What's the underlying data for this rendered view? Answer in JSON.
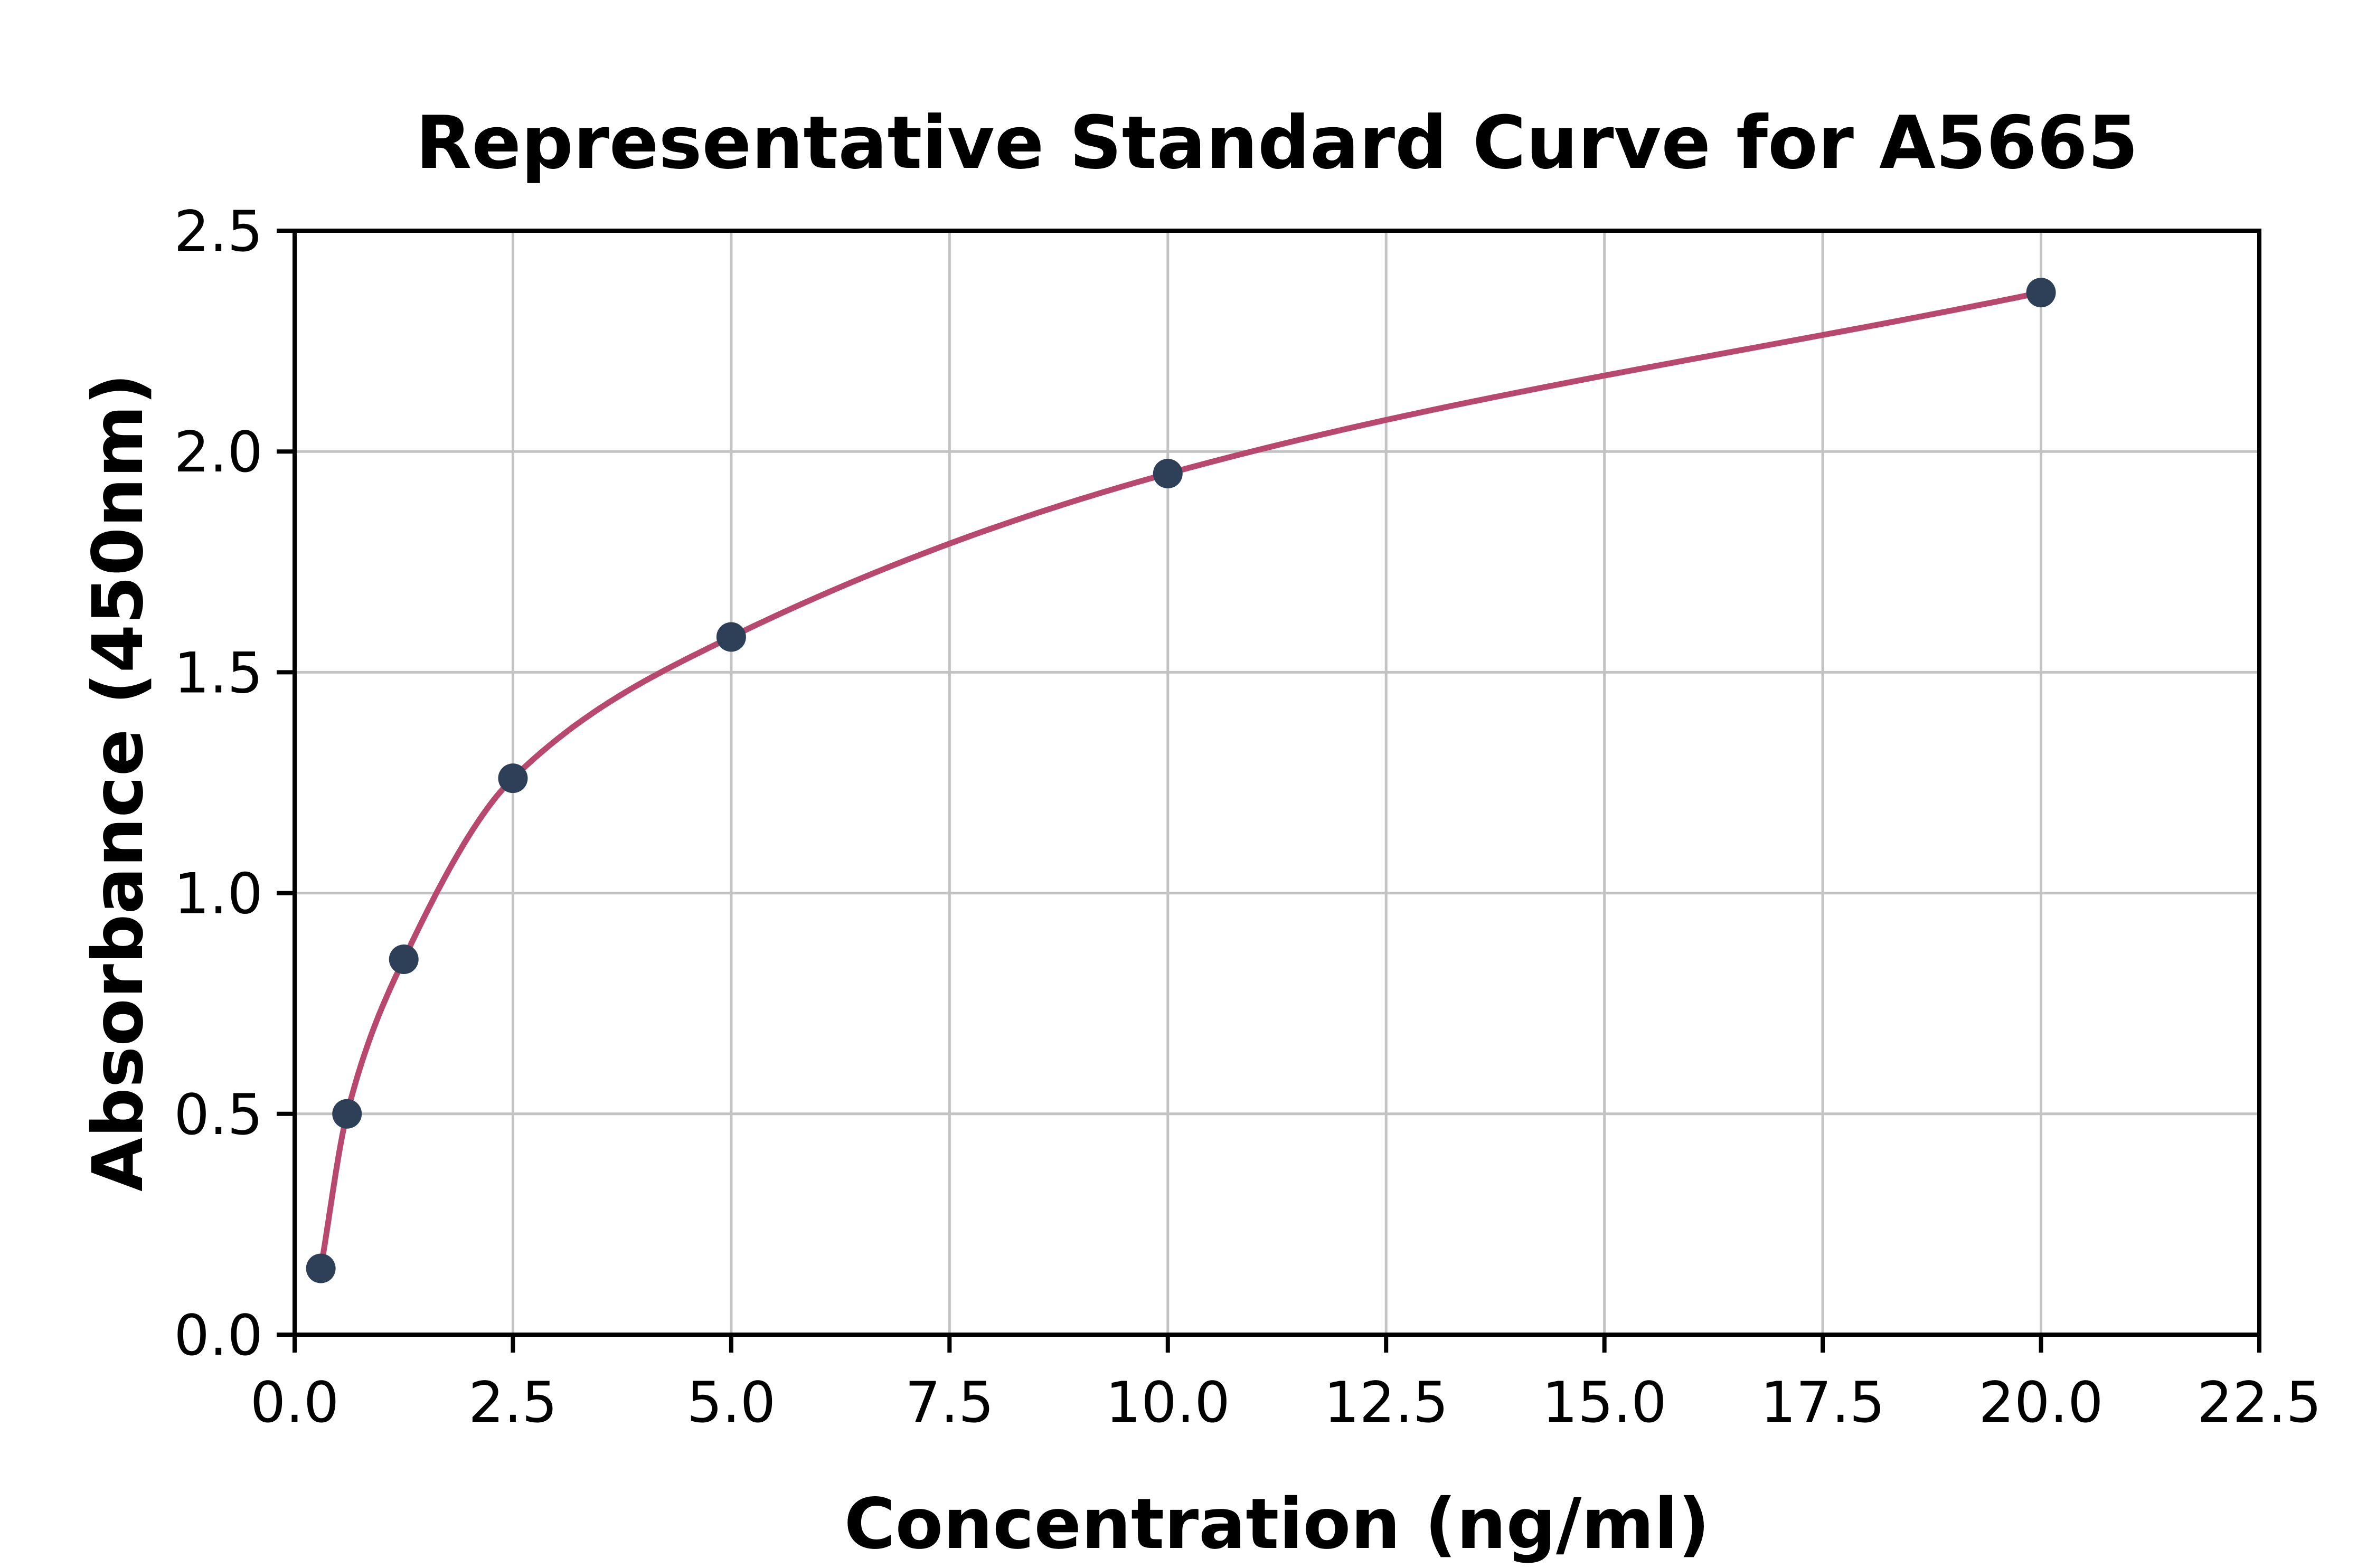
{
  "chart_data": {
    "type": "scatter",
    "title": "Representative Standard Curve for A5665",
    "xlabel": "Concentration (ng/ml)",
    "ylabel": "Absorbance (450nm)",
    "xlim": [
      0,
      22.5
    ],
    "ylim": [
      0,
      2.5
    ],
    "xtick_values": [
      0,
      2.5,
      5.0,
      7.5,
      10.0,
      12.5,
      15.0,
      17.5,
      20.0,
      22.5
    ],
    "xtick_labels": [
      "0.0",
      "2.5",
      "5.0",
      "7.5",
      "10.0",
      "12.5",
      "15.0",
      "17.5",
      "20.0",
      "22.5"
    ],
    "ytick_values": [
      0,
      0.5,
      1.0,
      1.5,
      2.0,
      2.5
    ],
    "ytick_labels": [
      "0.0",
      "0.5",
      "1.0",
      "1.5",
      "2.0",
      "2.5"
    ],
    "grid": true,
    "legend": "none",
    "points": [
      [
        0.3,
        0.15
      ],
      [
        0.6,
        0.5
      ],
      [
        1.25,
        0.85
      ],
      [
        2.5,
        1.26
      ],
      [
        5.0,
        1.58
      ],
      [
        10.0,
        1.95
      ],
      [
        20.0,
        2.36
      ]
    ],
    "series": [
      {
        "name": "standards",
        "style": "marker",
        "values": [
          0.15,
          0.5,
          0.85,
          1.26,
          1.58,
          1.95,
          2.36
        ]
      },
      {
        "name": "fitted-curve",
        "style": "smooth-line-through-points",
        "values": [
          0.15,
          0.5,
          0.85,
          1.26,
          1.58,
          1.95,
          2.36
        ]
      }
    ],
    "colors": {
      "curve": "#b8486d",
      "points": "#2e4057",
      "grid": "#c3c3c3",
      "axis": "#000000",
      "background": "#ffffff"
    }
  }
}
